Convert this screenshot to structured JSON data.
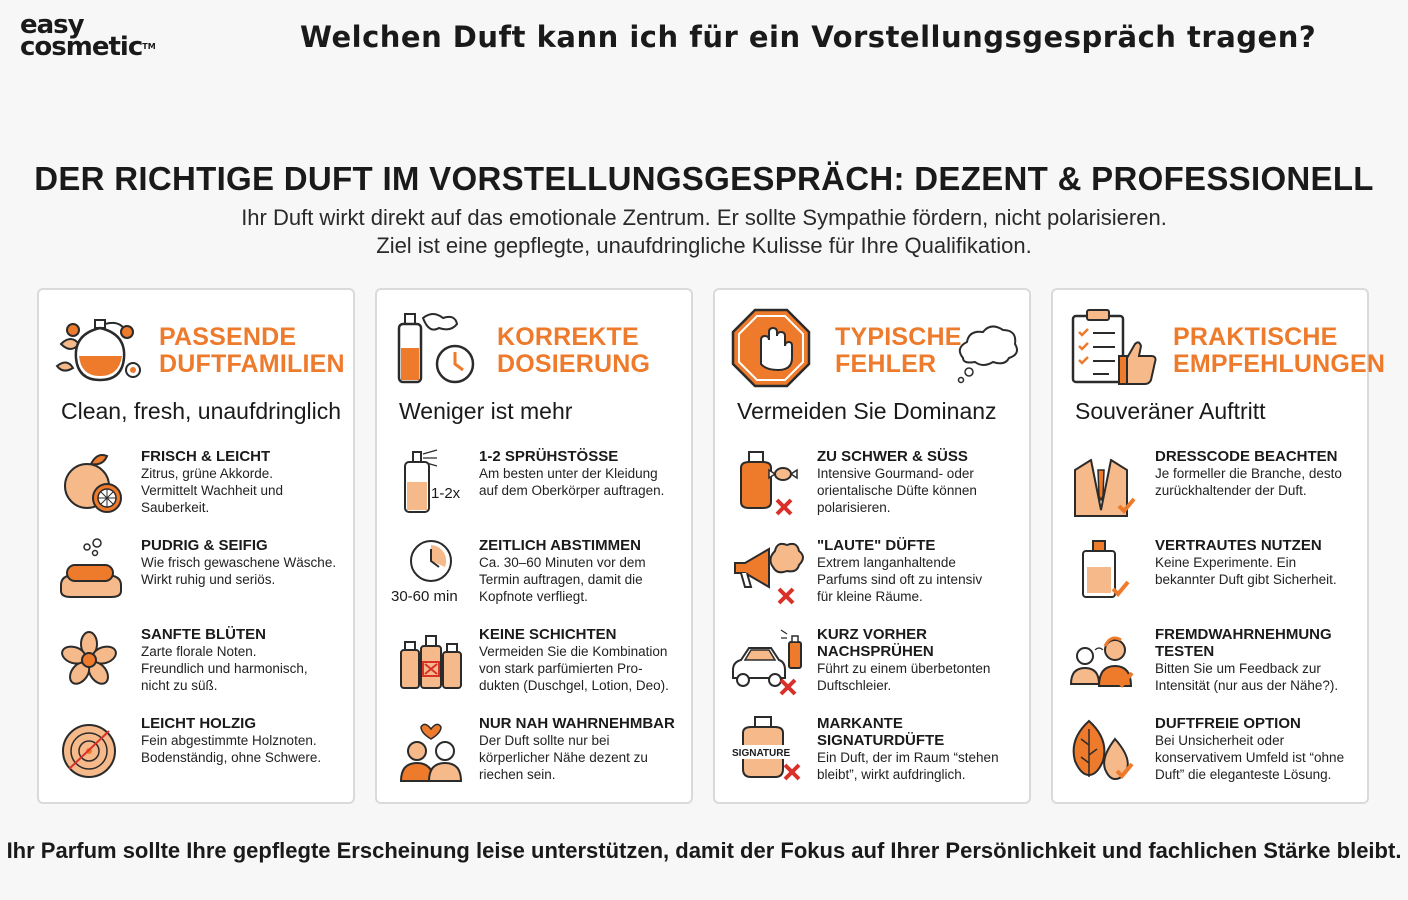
{
  "brand": {
    "line1": "easy",
    "line2": "cosmetic",
    "tm": "TM"
  },
  "question": "Welchen Duft kann ich für ein Vorstellungsgespräch tragen?",
  "headline": "DER RICHTIGE DUFT IM VORSTELLUNGSGESPRÄCH: DEZENT & PROFESSIONELL",
  "intro": [
    "Ihr Duft wirkt direkt auf das emotionale Zentrum. Er sollte Sympathie fördern, nicht polarisieren.",
    "Ziel ist eine gepflegte, unaufdringliche Kulisse für Ihre Qualifikation."
  ],
  "colors": {
    "accent": "#ee7a2c",
    "accent_light": "#f6b98a",
    "error": "#d9302a",
    "outline": "#2b2b2b"
  },
  "cards": [
    {
      "title": [
        "PASSENDE",
        "DUFTFAMILIEN"
      ],
      "icon": "perfume-bottle-flowers-icon",
      "subtitle": "Clean, fresh, unaufdringlich",
      "items": [
        {
          "icon": "citrus-fruit-icon",
          "title": "FRISCH & LEICHT",
          "desc": [
            "Zitrus, grüne Akkorde.",
            "Vermittelt Wachheit und",
            "Sauberkeit."
          ]
        },
        {
          "icon": "soap-bar-icon",
          "title": "PUDRIG & SEIFIG",
          "desc": [
            "Wie frisch gewaschene Wäsche.",
            "Wirkt ruhig und seriös."
          ]
        },
        {
          "icon": "flower-blossom-icon",
          "title": "SANFTE BLÜTEN",
          "desc": [
            "Zarte florale Noten.",
            "Freundlich und harmonisch,",
            "nicht zu süß."
          ]
        },
        {
          "icon": "wood-slice-icon",
          "title": "LEICHT HOLZIG",
          "desc": [
            "Fein abgestimmte Holznoten.",
            "Bodenständig, ohne Schwere."
          ]
        }
      ]
    },
    {
      "title": [
        "KORREKTE",
        "DOSIERUNG"
      ],
      "icon": "spray-bottle-clock-icon",
      "subtitle": "Weniger ist mehr",
      "items": [
        {
          "icon": "spray-bottle-icon",
          "tag": "1-2x",
          "title": "1-2 SPRÜHSTÖSSE",
          "desc": [
            "Am besten unter der Kleidung",
            "auf dem Oberkörper auftragen."
          ]
        },
        {
          "icon": "clock-icon",
          "tag": "30-60 min",
          "title": "ZEITLICH ABSTIMMEN",
          "desc": [
            "Ca. 30–60 Minuten vor dem",
            "Termin auftragen, damit die",
            "Kopfnote verfliegt."
          ]
        },
        {
          "icon": "layered-bottles-icon",
          "title": "KEINE SCHICHTEN",
          "desc": [
            "Vermeiden Sie die Kombination",
            "von stark parfümierten Pro-",
            "dukten (Duschgel, Lotion, Deo)."
          ]
        },
        {
          "icon": "couple-heart-icon",
          "title": "NUR NAH WAHRNEHMBAR",
          "desc": [
            "Der Duft sollte nur bei",
            "körperlicher Nähe dezent zu",
            "riechen sein."
          ]
        }
      ]
    },
    {
      "title": [
        "TYPISCHE",
        "FEHLER"
      ],
      "icon": "stop-hand-icon",
      "subtitle": "Vermeiden Sie Dominanz",
      "items": [
        {
          "icon": "sweet-perfume-cross-icon",
          "title": "ZU SCHWER & SÜSS",
          "desc": [
            "Intensive Gourmand- oder",
            "orientalische Düfte können",
            "polarisieren."
          ]
        },
        {
          "icon": "megaphone-cross-icon",
          "title": "\"LAUTE\" DÜFTE",
          "desc": [
            "Extrem langanhaltende",
            "Parfums sind oft zu intensiv",
            "für kleine Räume."
          ]
        },
        {
          "icon": "car-spray-cross-icon",
          "title": "KURZ VORHER NACHSPRÜHEN",
          "desc": [
            "Führt zu einem überbetonten",
            "Duftschleier."
          ]
        },
        {
          "icon": "signature-bottle-cross-icon",
          "tag": "SIGNATURE",
          "title": "MARKANTE SIGNATURDÜFTE",
          "desc": [
            "Ein Duft, der im Raum “stehen",
            "bleibt”, wirkt aufdringlich."
          ]
        }
      ]
    },
    {
      "title": [
        "PRAKTISCHE",
        "EMPFEHLUNGEN"
      ],
      "icon": "checklist-thumbs-up-icon",
      "subtitle": "Souveräner Auftritt",
      "items": [
        {
          "icon": "suit-check-icon",
          "title": "DRESSCODE BEACHTEN",
          "desc": [
            "Je formeller die Branche, desto",
            "zurückhaltender der Duft."
          ]
        },
        {
          "icon": "bottle-check-icon",
          "title": "VERTRAUTES NUTZEN",
          "desc": [
            "Keine Experimente. Ein",
            "bekannter Duft gibt Sicherheit."
          ]
        },
        {
          "icon": "people-smell-check-icon",
          "title": "FREMDWAHRNEHMUNG TESTEN",
          "desc": [
            "Bitten Sie um Feedback zur",
            "Intensität (nur aus der Nähe?)."
          ]
        },
        {
          "icon": "leaf-drop-check-icon",
          "title": "DUFTFREIE OPTION",
          "desc": [
            "Bei Unsicherheit oder",
            "konservativem Umfeld ist “ohne",
            "Duft” die eleganteste Lösung."
          ]
        }
      ]
    }
  ],
  "footer": "Ihr Parfum sollte Ihre gepflegte Erscheinung leise unterstützen, damit der Fokus auf Ihrer Persönlichkeit und fachlichen Stärke bleibt."
}
